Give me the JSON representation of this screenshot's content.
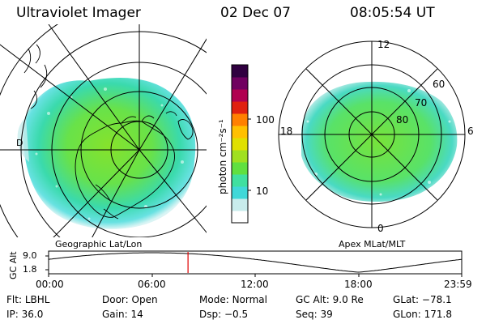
{
  "header": {
    "title": "Ultraviolet Imager",
    "date": "02 Dec 07",
    "time": "08:05:54 UT"
  },
  "left_panel": {
    "label": "Geographic Lat/Lon",
    "side_letter": "D"
  },
  "right_panel": {
    "label": "Apex MLat/MLT",
    "mlt_labels": {
      "top": "12",
      "bottom": "0",
      "left": "18",
      "right": "6"
    },
    "mlat_labels": [
      "60",
      "70",
      "80"
    ]
  },
  "colorbar": {
    "unit_label": "photon cm⁻²s⁻¹",
    "ticks": [
      "100",
      "10"
    ],
    "scale": "log",
    "colors": [
      "#ffffff",
      "#c8ecec",
      "#40d8d8",
      "#40e0a0",
      "#60e040",
      "#a0e020",
      "#e0e000",
      "#ffc000",
      "#ff8000",
      "#e02010",
      "#b00050",
      "#700060",
      "#300040"
    ]
  },
  "orbit": {
    "ylabel": "GC Alt",
    "ymax": "9.0",
    "ymin": "1.8",
    "x_ticks": [
      "00:00",
      "06:00",
      "12:00",
      "18:00",
      "23:59"
    ],
    "current_time_hours": 8.1,
    "curve_color": "#000000",
    "marker_color": "#e00000"
  },
  "info": {
    "row1": [
      {
        "key": "Flt:",
        "value": "LBHL"
      },
      {
        "key": "Door:",
        "value": "Open"
      },
      {
        "key": "Mode:",
        "value": "Normal"
      },
      {
        "key": "GC Alt:",
        "value": "9.0 Re"
      },
      {
        "key": "GLat:",
        "value": "−78.1"
      }
    ],
    "row2": [
      {
        "key": "IP:",
        "value": "36.0"
      },
      {
        "key": "Gain:",
        "value": "14"
      },
      {
        "key": "Dsp:",
        "value": "−0.5"
      },
      {
        "key": "Seq:",
        "value": "39"
      },
      {
        "key": "GLon:",
        "value": "171.8"
      }
    ]
  }
}
